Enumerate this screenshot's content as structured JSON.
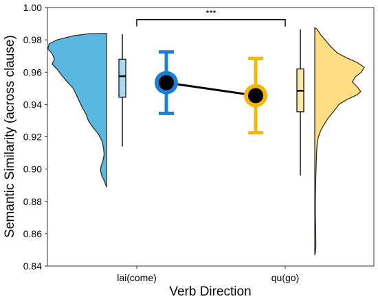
{
  "chart_data": {
    "type": "raincloud",
    "title": "",
    "xlabel": "Verb Direction",
    "ylabel": "Semantic Similarity (across clause)",
    "ylim": [
      0.84,
      1.0
    ],
    "yticks": [
      "0.84",
      "0.86",
      "0.88",
      "0.90",
      "0.92",
      "0.94",
      "0.96",
      "0.98",
      "1.00"
    ],
    "categories": [
      "lai(come)",
      "qu(go)"
    ],
    "colors": {
      "lai(come)": "#1a7fd6",
      "qu(go)": "#f5b800"
    },
    "density_colors": {
      "lai(come)": "#5ab8e0",
      "qu(go)": "#fedd83"
    },
    "box_colors": {
      "lai(come)": "#a9d8f0",
      "qu(go)": "#fde8a6"
    },
    "means": [
      0.9535,
      0.9455
    ],
    "error_bars": [
      {
        "category": "lai(come)",
        "low": 0.9345,
        "high": 0.9725
      },
      {
        "category": "qu(go)",
        "low": 0.9225,
        "high": 0.9685
      }
    ],
    "boxplots": [
      {
        "category": "lai(come)",
        "min": 0.914,
        "q1": 0.9445,
        "median": 0.9575,
        "q3": 0.968,
        "max": 0.9835
      },
      {
        "category": "qu(go)",
        "min": 0.896,
        "q1": 0.9355,
        "median": 0.9485,
        "q3": 0.962,
        "max": 0.9865
      }
    ],
    "significance": {
      "label": "***",
      "between": [
        "lai(come)",
        "qu(go)"
      ],
      "y": 0.9925
    },
    "densities": [
      {
        "category": "lai(come)",
        "side": "left",
        "points": [
          [
            0.984,
            0.0
          ],
          [
            0.9838,
            0.3
          ],
          [
            0.9825,
            0.55
          ],
          [
            0.98,
            0.82
          ],
          [
            0.9775,
            0.95
          ],
          [
            0.9745,
            0.97
          ],
          [
            0.9715,
            0.9
          ],
          [
            0.968,
            0.86
          ],
          [
            0.965,
            0.9
          ],
          [
            0.962,
            0.82
          ],
          [
            0.958,
            0.74
          ],
          [
            0.954,
            0.65
          ],
          [
            0.95,
            0.55
          ],
          [
            0.946,
            0.5
          ],
          [
            0.942,
            0.45
          ],
          [
            0.938,
            0.4
          ],
          [
            0.934,
            0.34
          ],
          [
            0.93,
            0.3
          ],
          [
            0.926,
            0.23
          ],
          [
            0.922,
            0.14
          ],
          [
            0.917,
            0.07
          ],
          [
            0.913,
            0.05
          ],
          [
            0.909,
            0.04
          ],
          [
            0.905,
            0.06
          ],
          [
            0.902,
            0.09
          ],
          [
            0.899,
            0.1
          ],
          [
            0.896,
            0.08
          ],
          [
            0.893,
            0.04
          ],
          [
            0.89,
            0.01
          ],
          [
            0.8887,
            0.0
          ]
        ]
      },
      {
        "category": "qu(go)",
        "side": "right",
        "points": [
          [
            0.9875,
            0.0
          ],
          [
            0.9865,
            0.04
          ],
          [
            0.983,
            0.1
          ],
          [
            0.98,
            0.17
          ],
          [
            0.976,
            0.26
          ],
          [
            0.972,
            0.37
          ],
          [
            0.969,
            0.52
          ],
          [
            0.966,
            0.7
          ],
          [
            0.963,
            0.82
          ],
          [
            0.96,
            0.77
          ],
          [
            0.957,
            0.67
          ],
          [
            0.954,
            0.62
          ],
          [
            0.951,
            0.7
          ],
          [
            0.948,
            0.76
          ],
          [
            0.946,
            0.7
          ],
          [
            0.943,
            0.53
          ],
          [
            0.94,
            0.4
          ],
          [
            0.936,
            0.32
          ],
          [
            0.932,
            0.23
          ],
          [
            0.928,
            0.16
          ],
          [
            0.924,
            0.1
          ],
          [
            0.92,
            0.06
          ],
          [
            0.916,
            0.04
          ],
          [
            0.91,
            0.03
          ],
          [
            0.904,
            0.025
          ],
          [
            0.898,
            0.02
          ],
          [
            0.892,
            0.015
          ],
          [
            0.886,
            0.012
          ],
          [
            0.88,
            0.01
          ],
          [
            0.874,
            0.01
          ],
          [
            0.868,
            0.012
          ],
          [
            0.862,
            0.015
          ],
          [
            0.856,
            0.018
          ],
          [
            0.852,
            0.018
          ],
          [
            0.849,
            0.012
          ],
          [
            0.8468,
            0.0
          ]
        ]
      }
    ]
  }
}
